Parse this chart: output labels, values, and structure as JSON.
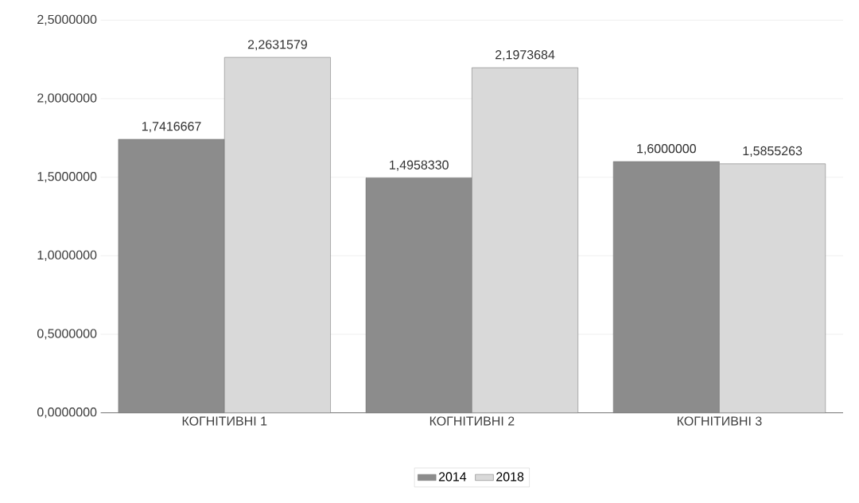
{
  "chart_data": {
    "type": "bar",
    "categories": [
      "КОГНІТИВНІ 1",
      "КОГНІТИВНІ 2",
      "КОГНІТИВНІ 3"
    ],
    "series": [
      {
        "name": "2014",
        "color": "#8c8c8c",
        "values": [
          1.7416667,
          1.495833,
          1.6
        ],
        "value_labels": [
          "1,7416667",
          "1,4958330",
          "1,6000000"
        ]
      },
      {
        "name": "2018",
        "color": "#d9d9d9",
        "values": [
          2.2631579,
          2.1973684,
          1.5855263
        ],
        "value_labels": [
          "2,2631579",
          "2,1973684",
          "1,5855263"
        ]
      }
    ],
    "ylim": [
      0,
      2.5
    ],
    "yticks": [
      {
        "value": 0,
        "label": "0,0000000"
      },
      {
        "value": 0.5,
        "label": "0,5000000"
      },
      {
        "value": 1,
        "label": "1,0000000"
      },
      {
        "value": 1.5,
        "label": "1,5000000"
      },
      {
        "value": 2,
        "label": "2,0000000"
      },
      {
        "value": 2.5,
        "label": "2,5000000"
      }
    ],
    "grid": "y",
    "legend": "bottom"
  }
}
